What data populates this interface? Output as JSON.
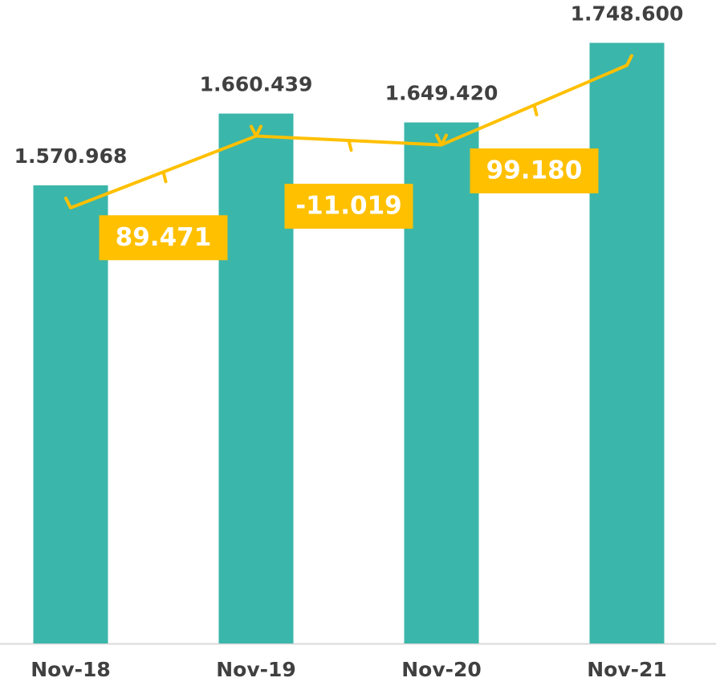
{
  "chart_data": {
    "type": "bar",
    "categories": [
      "Nov-18",
      "Nov-19",
      "Nov-20",
      "Nov-21"
    ],
    "values": [
      1570968,
      1660439,
      1649420,
      1748600
    ],
    "value_labels": [
      "1.570.968",
      "1.660.439",
      "1.649.420",
      "1.748.600"
    ],
    "color": "#3bb6aa",
    "ylim": [
      1000000,
      1800000
    ],
    "differences": {
      "values": [
        89471,
        -11019,
        99180
      ],
      "value_labels": [
        "89.471",
        "-11.019",
        "99.180"
      ],
      "color": "#ffc000"
    }
  }
}
